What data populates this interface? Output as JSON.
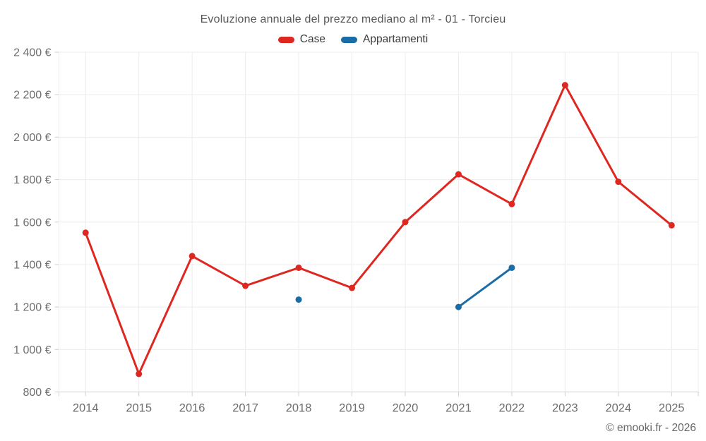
{
  "chart_data": {
    "type": "line",
    "title": "Evoluzione annuale del prezzo mediano al m² - 01 - Torcieu",
    "footer": "© emooki.fr - 2026",
    "categories": [
      "2014",
      "2015",
      "2016",
      "2017",
      "2018",
      "2019",
      "2020",
      "2021",
      "2022",
      "2023",
      "2024",
      "2025"
    ],
    "series": [
      {
        "name": "Case",
        "color": "#df2722",
        "values": [
          1550,
          885,
          1440,
          1300,
          1385,
          1290,
          1600,
          1825,
          1685,
          2245,
          1790,
          1585
        ]
      },
      {
        "name": "Appartamenti",
        "color": "#1a6ca6",
        "values": [
          null,
          null,
          null,
          null,
          1235,
          null,
          null,
          1200,
          1385,
          null,
          null,
          null
        ]
      }
    ],
    "ylim": [
      800,
      2400
    ],
    "ytick_step": 200,
    "ytick_labels": [
      "800 €",
      "1 000 €",
      "1 200 €",
      "1 400 €",
      "1 600 €",
      "1 800 €",
      "2 000 €",
      "2 200 €",
      "2 400 €"
    ],
    "currency": "€",
    "grid": true,
    "legend_position": "top"
  },
  "colors": {
    "grid": "#ececec",
    "axis": "#cfcfcf",
    "tick_text": "#6e6e6e",
    "title_text": "#565656"
  }
}
